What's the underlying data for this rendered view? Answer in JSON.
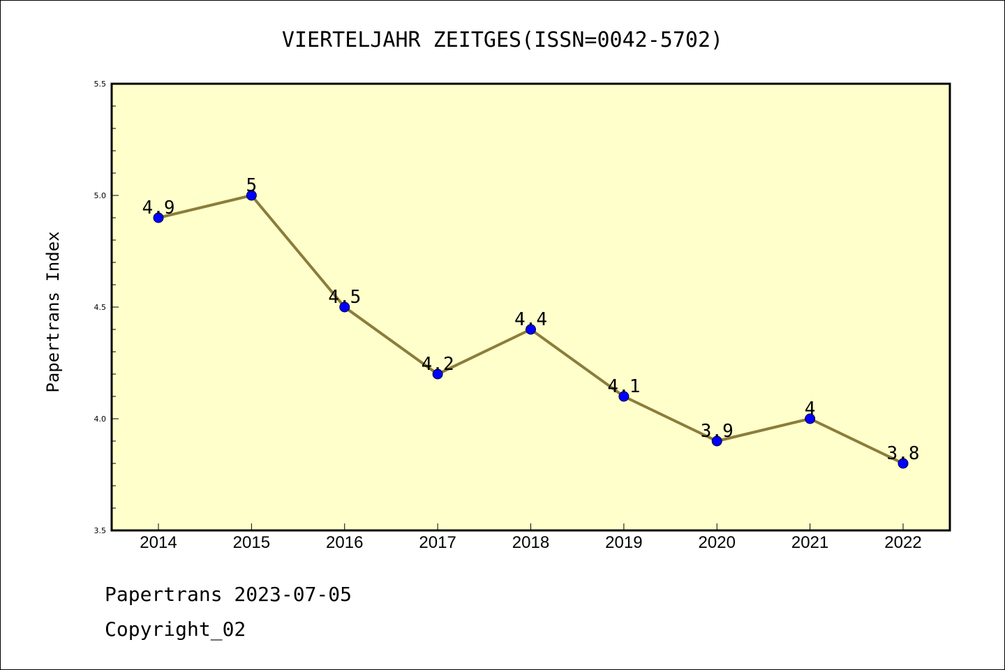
{
  "chart_data": {
    "type": "line",
    "title": "VIERTELJAHR ZEITGES(ISSN=0042-5702)",
    "ylabel": "Papertrans Index",
    "xlabel": "",
    "categories": [
      "2014",
      "2015",
      "2016",
      "2017",
      "2018",
      "2019",
      "2020",
      "2021",
      "2022"
    ],
    "values": [
      4.9,
      5.0,
      4.5,
      4.2,
      4.4,
      4.1,
      3.9,
      4.0,
      3.8
    ],
    "data_labels": [
      "4.9",
      "5",
      "4.5",
      "4.2",
      "4.4",
      "4.1",
      "3.9",
      "4",
      "3.8"
    ],
    "ylim": [
      3.5,
      5.5
    ],
    "yticks": [
      3.5,
      4.0,
      4.5,
      5.0,
      5.5
    ],
    "ytick_labels": [
      "3.5",
      "4.0",
      "4.5",
      "5.0",
      "5.5"
    ],
    "grid": false,
    "colors": {
      "plot_background": "#ffffcc",
      "line": "#8b7d3a",
      "marker": "#0000ff"
    }
  },
  "footer": {
    "line1": "Papertrans 2023-07-05",
    "line2": "Copyright_02"
  }
}
